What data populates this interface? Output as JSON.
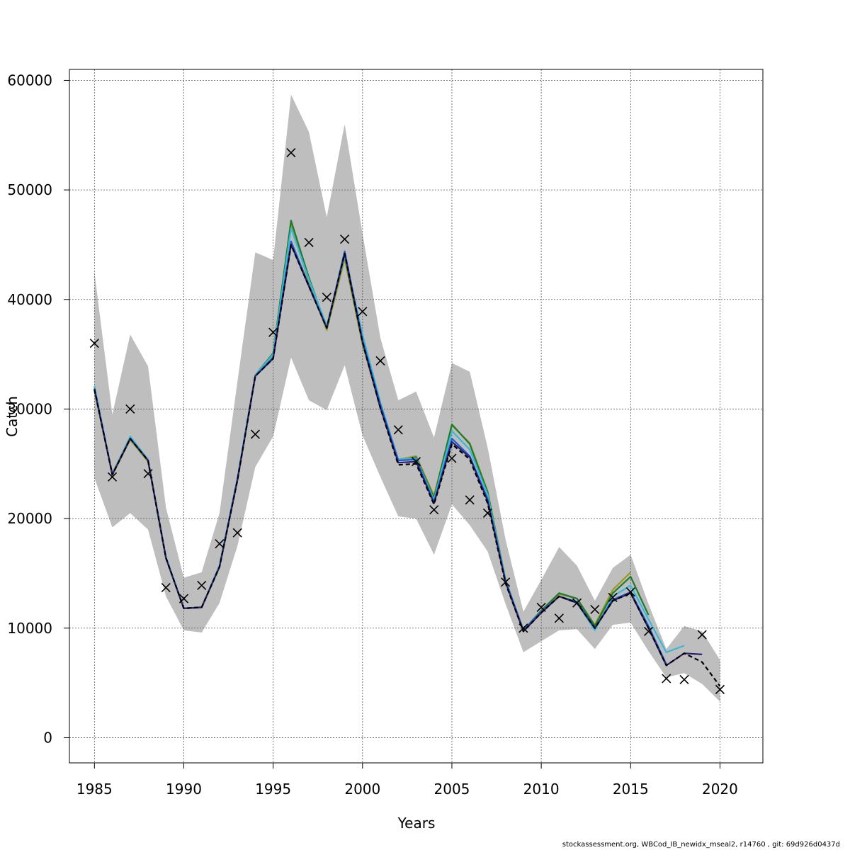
{
  "chart_data": {
    "type": "line",
    "title": "",
    "xlabel": "Years",
    "ylabel": "Catch",
    "xlim": [
      1983.6,
      2022.4
    ],
    "ylim": [
      -2300,
      61000
    ],
    "x_ticks": [
      1985,
      1990,
      1995,
      2000,
      2005,
      2010,
      2015,
      2020
    ],
    "y_ticks": [
      0,
      10000,
      20000,
      30000,
      40000,
      50000,
      60000
    ],
    "x_tick_labels": [
      "1985",
      "1990",
      "1995",
      "2000",
      "2005",
      "2010",
      "2015",
      "2020"
    ],
    "y_tick_labels": [
      "0",
      "10000",
      "20000",
      "30000",
      "40000",
      "50000",
      "60000"
    ],
    "grid": true,
    "confidence_band": {
      "color": "#bebebe",
      "x": [
        1985,
        1986,
        1987,
        1988,
        1989,
        1990,
        1991,
        1992,
        1993,
        1994,
        1995,
        1996,
        1997,
        1998,
        1999,
        2000,
        2001,
        2002,
        2003,
        2004,
        2005,
        2006,
        2007,
        2008,
        2009,
        2010,
        2011,
        2012,
        2013,
        2014,
        2015,
        2016,
        2017,
        2018,
        2019,
        2020
      ],
      "upper": [
        42500,
        29500,
        36800,
        33900,
        21000,
        14600,
        15100,
        20500,
        32500,
        44300,
        43600,
        58700,
        55300,
        47500,
        56000,
        46000,
        36500,
        30800,
        31600,
        27400,
        34200,
        33400,
        26500,
        18100,
        11500,
        14400,
        17400,
        15700,
        12500,
        15500,
        16700,
        12200,
        8100,
        10200,
        9700,
        7100
      ],
      "lower": [
        23700,
        19200,
        20500,
        19000,
        12900,
        9800,
        9600,
        12300,
        17500,
        24700,
        27500,
        34700,
        30800,
        29900,
        34000,
        27600,
        23800,
        20200,
        20000,
        16700,
        21300,
        19400,
        17000,
        12200,
        7800,
        8800,
        9800,
        9900,
        8100,
        10300,
        10500,
        7900,
        5500,
        5900,
        4900,
        3300
      ]
    },
    "observations": {
      "marker": "x",
      "color": "#000000",
      "x": [
        1985,
        1986,
        1987,
        1988,
        1989,
        1990,
        1991,
        1992,
        1993,
        1994,
        1995,
        1996,
        1997,
        1998,
        1999,
        2000,
        2001,
        2002,
        2003,
        2004,
        2005,
        2006,
        2007,
        2008,
        2009,
        2010,
        2011,
        2012,
        2013,
        2014,
        2015,
        2016,
        2017,
        2018,
        2019,
        2020
      ],
      "y": [
        36000,
        23800,
        30000,
        24100,
        13700,
        12700,
        13900,
        17700,
        18700,
        27700,
        37000,
        53400,
        45200,
        40200,
        45500,
        38900,
        34400,
        28100,
        25200,
        20800,
        25500,
        21700,
        20500,
        14200,
        10000,
        11900,
        10900,
        12300,
        11700,
        12800,
        13300,
        9700,
        5400,
        5300,
        9400,
        4400
      ]
    },
    "series": [
      {
        "color": "#000000",
        "dash": "6,4",
        "x": [
          1985,
          1986,
          1987,
          1988,
          1989,
          1990,
          1991,
          1992,
          1993,
          1994,
          1995,
          1996,
          1997,
          1998,
          1999,
          2000,
          2001,
          2002,
          2003,
          2004,
          2005,
          2006,
          2007,
          2008,
          2009,
          2010,
          2011,
          2012,
          2013,
          2014,
          2015,
          2016,
          2017,
          2018,
          2019,
          2020
        ],
        "y": [
          31800,
          24000,
          27300,
          25300,
          16400,
          11800,
          11900,
          15600,
          23500,
          33000,
          34600,
          45000,
          41200,
          37400,
          44200,
          36100,
          30100,
          24900,
          25000,
          21300,
          26800,
          25400,
          21400,
          14100,
          9700,
          11400,
          12900,
          12300,
          10000,
          12500,
          13200,
          10000,
          6600,
          7700,
          6900,
          4700
        ]
      },
      {
        "color": "#2c1f6e",
        "x": [
          1985,
          1986,
          1987,
          1988,
          1989,
          1990,
          1991,
          1992,
          1993,
          1994,
          1995,
          1996,
          1997,
          1998,
          1999,
          2000,
          2001,
          2002,
          2003,
          2004,
          2005,
          2006,
          2007,
          2008,
          2009,
          2010,
          2011,
          2012,
          2013,
          2014,
          2015,
          2016,
          2017,
          2018,
          2019
        ],
        "y": [
          31800,
          24000,
          27300,
          25300,
          16400,
          11800,
          11900,
          15600,
          23500,
          33000,
          34600,
          45000,
          41200,
          37400,
          44200,
          36100,
          30100,
          25100,
          25200,
          21400,
          27000,
          25600,
          21600,
          14200,
          9700,
          11400,
          12900,
          12300,
          10000,
          12500,
          13200,
          10000,
          6600,
          7700,
          7600
        ]
      },
      {
        "color": "#1b5fd6",
        "x": [
          1985,
          1986,
          1987,
          1988,
          1989,
          1990,
          1991,
          1992,
          1993,
          1994,
          1995,
          1996,
          1997,
          1998,
          1999,
          2000,
          2001,
          2002,
          2003,
          2004,
          2005,
          2006,
          2007,
          2008,
          2009,
          2010,
          2011,
          2012,
          2013,
          2014,
          2015,
          2016,
          2017
        ],
        "y": [
          31900,
          24000,
          27300,
          25300,
          16400,
          11800,
          11900,
          15600,
          23600,
          33000,
          34700,
          45300,
          41300,
          37400,
          44400,
          36300,
          30400,
          25300,
          25400,
          21500,
          27300,
          25700,
          21800,
          14300,
          9800,
          11500,
          12900,
          12400,
          10000,
          12600,
          13300,
          10200,
          6700
        ]
      },
      {
        "color": "#3ab8d8",
        "x": [
          1985,
          1986,
          1987,
          1988,
          1989,
          1990,
          1991,
          1992,
          1993,
          1994,
          1995,
          1996,
          1997,
          1998,
          1999,
          2000,
          2001,
          2002,
          2003,
          2004,
          2005,
          2006,
          2007,
          2008,
          2009,
          2010,
          2011,
          2012,
          2013,
          2014,
          2015,
          2016,
          2017,
          2018
        ],
        "y": [
          32100,
          24000,
          27500,
          25400,
          16500,
          11800,
          11900,
          15700,
          23700,
          33100,
          35000,
          46500,
          41800,
          37600,
          44000,
          36800,
          30600,
          25400,
          25500,
          21700,
          28000,
          26300,
          22200,
          14400,
          9800,
          11500,
          12900,
          12300,
          9800,
          12900,
          13900,
          10800,
          7800,
          8400
        ]
      },
      {
        "color": "#1f7a2e",
        "x": [
          1985,
          1986,
          1987,
          1988,
          1989,
          1990,
          1991,
          1992,
          1993,
          1994,
          1995,
          1996,
          1997,
          1998,
          1999,
          2000,
          2001,
          2002,
          2003,
          2004,
          2005,
          2006,
          2007,
          2008,
          2009,
          2010,
          2011,
          2012,
          2013,
          2014,
          2015,
          2016
        ],
        "y": [
          31800,
          24100,
          27400,
          25300,
          16400,
          11800,
          11900,
          15700,
          23600,
          33100,
          35100,
          47200,
          42000,
          37400,
          44000,
          36100,
          30100,
          25300,
          25600,
          21900,
          28600,
          26800,
          22400,
          14400,
          9800,
          11600,
          13200,
          12700,
          10200,
          13200,
          14700,
          11200
        ]
      },
      {
        "color": "#9a9a1e",
        "x": [
          1985,
          1986,
          1987,
          1988,
          1989,
          1990,
          1991,
          1992,
          1993,
          1994,
          1995,
          1996,
          1997,
          1998,
          1999,
          2000,
          2001,
          2002,
          2003,
          2004,
          2005,
          2006,
          2007,
          2008,
          2009,
          2010,
          2011,
          2012,
          2013,
          2014,
          2015
        ],
        "y": [
          31700,
          24000,
          27200,
          25200,
          16400,
          11800,
          11900,
          15600,
          23500,
          33000,
          34900,
          46800,
          41600,
          37200,
          43700,
          35900,
          30200,
          25400,
          25700,
          22100,
          28500,
          26900,
          22500,
          14400,
          9800,
          11600,
          13100,
          12700,
          10300,
          13500,
          15100
        ]
      }
    ]
  },
  "footer_text": "stockassessment.org, WBCod_IB_newidx_mseal2, r14760 , git: 69d926d0437d"
}
